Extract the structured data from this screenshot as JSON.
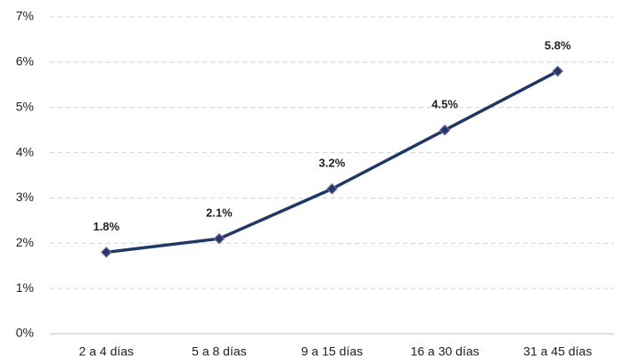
{
  "chart_data": {
    "type": "line",
    "categories": [
      "2 a 4 días",
      "5 a 8 días",
      "9 a 15 días",
      "16 a 30 días",
      "31 a 45 días"
    ],
    "values": [
      1.8,
      2.1,
      3.2,
      4.5,
      5.8
    ],
    "value_labels": [
      "1.8%",
      "2.1%",
      "3.2%",
      "4.5%",
      "5.8%"
    ],
    "color": "#1f3864",
    "marker_edge_color": "#8064a2",
    "ylim": [
      0,
      7
    ],
    "yticks": [
      {
        "value": 0,
        "label": "0%"
      },
      {
        "value": 1,
        "label": "1%"
      },
      {
        "value": 2,
        "label": "2%"
      },
      {
        "value": 3,
        "label": "3%"
      },
      {
        "value": 4,
        "label": "4%"
      },
      {
        "value": 5,
        "label": "5%"
      },
      {
        "value": 6,
        "label": "6%"
      },
      {
        "value": 7,
        "label": "7%"
      }
    ],
    "grid": true
  }
}
